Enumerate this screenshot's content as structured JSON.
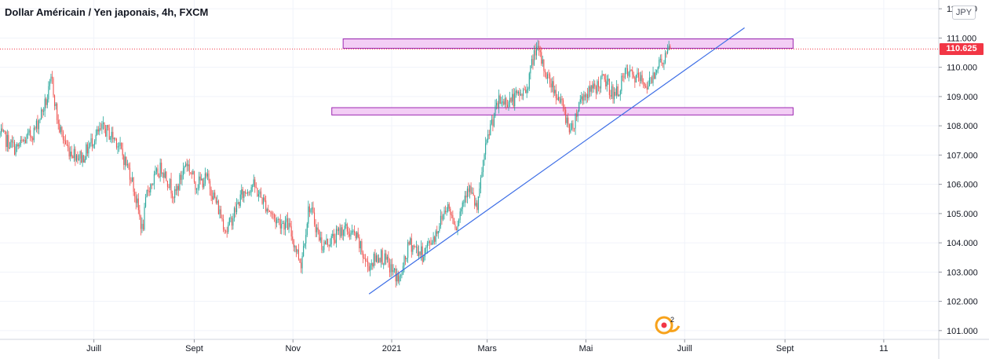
{
  "header": {
    "title": "Dollar Américain / Yen japonais, 4h, FXCM",
    "currency": "JPY"
  },
  "current_price": {
    "label": "110.625",
    "value": 110.625,
    "color": "#f23645"
  },
  "event_marker": {
    "icon": "earnings-event-icon",
    "count": "2",
    "color": "#f7a21b"
  },
  "colors": {
    "up": "#26a69a",
    "down": "#ef5350",
    "zone_fill": "#f3cef5",
    "zone_stroke": "#9c27b0",
    "trendline": "#3d6ee6",
    "grid": "#f0f3fa",
    "axis_text": "#131722"
  },
  "chart_data": {
    "type": "candlestick",
    "title": "Dollar Américain / Yen japonais, 4h, FXCM",
    "ylim": [
      100.7,
      112.3
    ],
    "y_ticks": [
      "101.000",
      "102.000",
      "103.000",
      "104.000",
      "105.000",
      "106.000",
      "107.000",
      "108.000",
      "109.000",
      "110.000",
      "111.000",
      "112.000"
    ],
    "y_tick_values": [
      101,
      102,
      103,
      104,
      105,
      106,
      107,
      108,
      109,
      110,
      111,
      112
    ],
    "x_ticks": [
      "Juill",
      "Sept",
      "Nov",
      "2021",
      "Mars",
      "Mai",
      "Juill",
      "Sept",
      "11"
    ],
    "x_tick_dates": [
      "2020-07-01",
      "2020-09-01",
      "2020-11-01",
      "2021-01-01",
      "2021-03-01",
      "2021-05-01",
      "2021-07-01",
      "2021-09-01",
      "2021-11-01"
    ],
    "x_range": [
      "2020-05-04",
      "2021-12-05"
    ],
    "close_path": [
      [
        "2020-05-04",
        107.7
      ],
      [
        "2020-05-14",
        107.2
      ],
      [
        "2020-05-25",
        107.8
      ],
      [
        "2020-06-02",
        108.9
      ],
      [
        "2020-06-05",
        109.6
      ],
      [
        "2020-06-09",
        108.0
      ],
      [
        "2020-06-15",
        107.2
      ],
      [
        "2020-06-24",
        106.9
      ],
      [
        "2020-07-01",
        107.6
      ],
      [
        "2020-07-07",
        107.9
      ],
      [
        "2020-07-15",
        107.5
      ],
      [
        "2020-07-24",
        106.3
      ],
      [
        "2020-07-31",
        104.4
      ],
      [
        "2020-08-03",
        105.8
      ],
      [
        "2020-08-12",
        106.6
      ],
      [
        "2020-08-20",
        105.6
      ],
      [
        "2020-08-27",
        106.8
      ],
      [
        "2020-09-02",
        106.0
      ],
      [
        "2020-09-09",
        106.2
      ],
      [
        "2020-09-21",
        104.4
      ],
      [
        "2020-09-30",
        105.6
      ],
      [
        "2020-10-07",
        106.0
      ],
      [
        "2020-10-14",
        105.4
      ],
      [
        "2020-10-21",
        104.8
      ],
      [
        "2020-10-29",
        104.6
      ],
      [
        "2020-11-06",
        103.3
      ],
      [
        "2020-11-11",
        105.3
      ],
      [
        "2020-11-19",
        103.9
      ],
      [
        "2020-11-27",
        104.2
      ],
      [
        "2020-12-02",
        104.5
      ],
      [
        "2020-12-10",
        104.2
      ],
      [
        "2020-12-17",
        103.2
      ],
      [
        "2020-12-25",
        103.6
      ],
      [
        "2021-01-06",
        102.7
      ],
      [
        "2021-01-12",
        104.0
      ],
      [
        "2021-01-20",
        103.6
      ],
      [
        "2021-01-28",
        104.3
      ],
      [
        "2021-02-04",
        105.3
      ],
      [
        "2021-02-10",
        104.6
      ],
      [
        "2021-02-17",
        106.0
      ],
      [
        "2021-02-23",
        105.1
      ],
      [
        "2021-02-26",
        106.6
      ],
      [
        "2021-03-03",
        108.0
      ],
      [
        "2021-03-08",
        108.8
      ],
      [
        "2021-03-17",
        108.9
      ],
      [
        "2021-03-25",
        109.2
      ],
      [
        "2021-03-31",
        110.7
      ],
      [
        "2021-04-07",
        109.7
      ],
      [
        "2021-04-14",
        109.0
      ],
      [
        "2021-04-22",
        107.8
      ],
      [
        "2021-04-28",
        109.0
      ],
      [
        "2021-05-05",
        109.2
      ],
      [
        "2021-05-12",
        109.6
      ],
      [
        "2021-05-19",
        109.0
      ],
      [
        "2021-05-26",
        109.8
      ],
      [
        "2021-06-02",
        109.6
      ],
      [
        "2021-06-09",
        109.4
      ],
      [
        "2021-06-14",
        110.1
      ],
      [
        "2021-06-17",
        110.2
      ],
      [
        "2021-06-22",
        110.6
      ]
    ],
    "last_bar_date": "2021-06-22",
    "zones": [
      {
        "from": "2020-12-02",
        "to": "2021-09-06",
        "low": 110.65,
        "high": 110.97
      },
      {
        "from": "2020-11-25",
        "to": "2021-09-06",
        "low": 108.37,
        "high": 108.62
      }
    ],
    "trendline": {
      "from": [
        "2020-12-18",
        102.25
      ],
      "to": [
        "2021-08-07",
        111.35
      ]
    },
    "price_line": 110.625
  }
}
